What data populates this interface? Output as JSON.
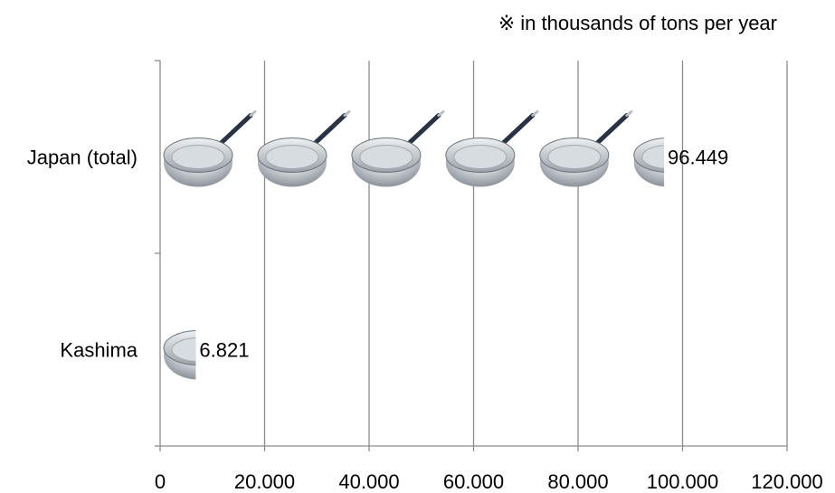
{
  "chart_data": {
    "type": "bar",
    "orientation": "horizontal",
    "note": "※ in thousands of tons per year",
    "categories": [
      "Japan (total)",
      "Kashima"
    ],
    "values": [
      96.449,
      6.821
    ],
    "value_labels": [
      "96.449",
      "6.821"
    ],
    "xlim": [
      0,
      120
    ],
    "x_ticks": [
      0,
      20,
      40,
      60,
      80,
      100,
      120
    ],
    "x_tick_labels": [
      "0",
      "20.000",
      "40.000",
      "60.000",
      "80.000",
      "100.000",
      "120.000"
    ],
    "grid": "vertical",
    "bar_style": "pictograph of frying pans",
    "unit_per_icon": 18,
    "colors": {
      "grid": "#8c8c8c",
      "pan_body": "#c9ced3",
      "pan_handle": "#2a3344"
    }
  }
}
